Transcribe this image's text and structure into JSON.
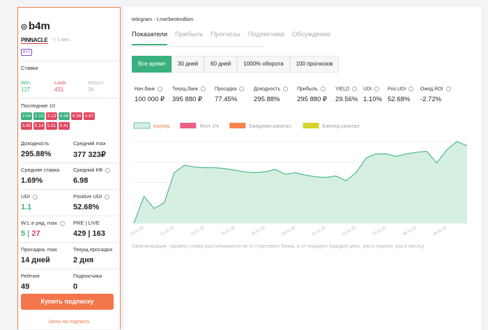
{
  "profile": {
    "name": "b4m",
    "bookmaker": "PINNACLE",
    "age": "< 1 мес.",
    "badge": "BYC"
  },
  "bets": {
    "title": "Ставки",
    "items": [
      {
        "label": "Win",
        "value": "127",
        "color": "#3bb07f"
      },
      {
        "label": "Lose",
        "value": "431",
        "color": "#e0475f"
      },
      {
        "label": "Return",
        "value": "34",
        "color": "#b0b4bc"
      }
    ]
  },
  "last10": {
    "title": "Последние 10",
    "odds": [
      {
        "value": "2.04",
        "color": "#3bb07f"
      },
      {
        "value": "2.10",
        "color": "#3bb07f"
      },
      {
        "value": "3.13",
        "color": "#e0475f"
      },
      {
        "value": "4.36",
        "color": "#3bb07f"
      },
      {
        "value": "4.36",
        "color": "#e0475f"
      },
      {
        "value": "4.87",
        "color": "#e0475f"
      },
      {
        "value": "3.65",
        "color": "#e0475f"
      },
      {
        "value": "5.14",
        "color": "#e0475f"
      },
      {
        "value": "5.61",
        "color": "#e0475f"
      },
      {
        "value": "5.41",
        "color": "#e0475f"
      }
    ]
  },
  "stats": [
    {
      "label": "Доходность",
      "info": false,
      "parts": [
        {
          "text": "295.88%",
          "color": "#222"
        }
      ]
    },
    {
      "label": "Средний max",
      "info": false,
      "parts": [
        {
          "text": "377 323₽",
          "color": "#222"
        }
      ]
    },
    {
      "label": "Средняя ставка",
      "info": false,
      "parts": [
        {
          "text": "1.69%",
          "color": "#222"
        }
      ]
    },
    {
      "label": "Средний КФ",
      "info": true,
      "parts": [
        {
          "text": "6.98",
          "color": "#222"
        }
      ]
    },
    {
      "label": "UDI",
      "info": true,
      "parts": [
        {
          "text": "1.1",
          "color": "#3bb07f"
        }
      ]
    },
    {
      "label": "Positive UDI",
      "info": true,
      "parts": [
        {
          "text": "52.68%",
          "color": "#222"
        }
      ]
    },
    {
      "label": "W:L в ряд, max",
      "info": true,
      "parts": [
        {
          "text": "5",
          "color": "#3bb07f"
        },
        {
          "text": " | ",
          "color": "#999"
        },
        {
          "text": "27",
          "color": "#e0475f"
        }
      ]
    },
    {
      "label": "PRE | LIVE",
      "info": false,
      "parts": [
        {
          "text": "429 | 163",
          "color": "#222"
        }
      ]
    },
    {
      "label": "Просадка, max",
      "info": false,
      "parts": [
        {
          "text": "14 дней",
          "color": "#222"
        }
      ]
    },
    {
      "label": "Текущ.просадка",
      "info": false,
      "parts": [
        {
          "text": "2 дня",
          "color": "#222"
        }
      ]
    },
    {
      "label": "Рейтинг",
      "info": false,
      "parts": [
        {
          "text": "49",
          "color": "#222"
        }
      ]
    },
    {
      "label": "Подписчики",
      "info": false,
      "parts": [
        {
          "text": "0",
          "color": "#222"
        }
      ]
    }
  ],
  "button": "Купить подписку",
  "prices_link": "Цены на подписку",
  "channel": "telegram - t.me/bet4million",
  "tabs": [
    "Показатели",
    "Прибыль",
    "Прогнозы",
    "Подписчики",
    "Обсуждение"
  ],
  "active_tab": 0,
  "periods": [
    "Все время",
    "30 дней",
    "60 дней",
    "1000% оборота",
    "100 прогнозов"
  ],
  "active_period": 0,
  "metrics": [
    {
      "label": "Нач.банк",
      "value": "100 000 ₽"
    },
    {
      "label": "Текущ.банк",
      "value": "395 880 ₽"
    },
    {
      "label": "Просадка",
      "value": "77.45%"
    },
    {
      "label": "Доходность",
      "value": "295.88%"
    },
    {
      "label": "Прибыль",
      "value": "295 880 ₽"
    },
    {
      "label": "YIELD",
      "value": "29.56%"
    },
    {
      "label": "UDI",
      "value": "1.10%"
    },
    {
      "label": "Pos.UDI",
      "value": "52.68%"
    },
    {
      "label": "Ожид.ROI",
      "value": "-2.72%"
    }
  ],
  "chart_data": {
    "type": "area",
    "legend": [
      {
        "name": "Каппер",
        "color": "#d6efe3",
        "text_color": "#f07a4a"
      },
      {
        "name": "Флэт 1%",
        "color": "#ee5f86",
        "text_color": "#9aa0a8"
      },
      {
        "name": "Ежедневн.капитал.",
        "color": "#f7834f",
        "text_color": "#9aa0a8"
      },
      {
        "name": "Еженед.капитал.",
        "color": "#d8d32a",
        "text_color": "#9aa0a8"
      }
    ],
    "categories": [
      null,
      "10.01.20",
      null,
      null,
      "21.01.20",
      null,
      null,
      "23.01.20",
      null,
      null,
      "25.01.20",
      null,
      null,
      "28.01.20",
      null,
      null,
      "29.01.20",
      null,
      null,
      "31.01.20",
      null,
      null,
      "02.02.20",
      null,
      null,
      "04.02.20",
      null,
      null,
      "06.02.20",
      null,
      null,
      "08.02.20",
      null,
      null
    ],
    "series": [
      {
        "name": "Каппер",
        "color": "#4cb88a",
        "values": [
          0,
          33,
          18,
          25,
          62,
          71,
          69,
          68,
          68,
          67,
          65,
          63,
          62,
          63,
          66,
          60,
          62,
          59,
          57,
          56,
          58,
          52,
          62,
          80,
          85,
          85,
          82,
          85,
          87,
          88,
          74,
          90,
          100,
          95
        ]
      }
    ],
    "ylim": [
      0,
      100
    ],
    "yticks": [
      0,
      25,
      50,
      75,
      100
    ],
    "grid": true
  },
  "note": "Капитализация - размер ставки рассчитывается не от стартового банка, а от текущего (каждый день, раз в неделю, раз в месяц)"
}
